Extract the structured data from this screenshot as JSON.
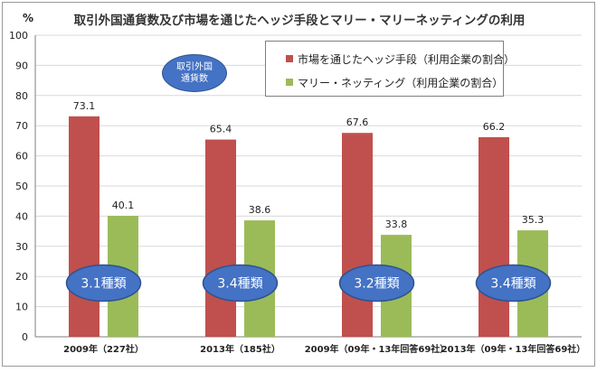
{
  "chart_data": {
    "type": "bar",
    "title": "取引外国通貨数及び市場を通じたヘッジ手段とマリー・マリーネッティングの利用",
    "ylabel_unit": "%",
    "ylim": [
      0,
      100
    ],
    "yticks": [
      0,
      10,
      20,
      30,
      40,
      50,
      60,
      70,
      80,
      90,
      100
    ],
    "grid": true,
    "legend_position": "top-right",
    "categories": [
      "2009年（227社）",
      "2013年（185社）",
      "2009年（09年・13年回答69社）",
      "2013年（09年・13年回答69社）"
    ],
    "series": [
      {
        "name": "市場を通じたヘッジ手段（利用企業の割合）",
        "color": "#c0504d",
        "values": [
          73.1,
          65.4,
          67.6,
          66.2
        ]
      },
      {
        "name": "マリー・ネッティング（利用企業の割合）",
        "color": "#9bbb59",
        "values": [
          40.1,
          38.6,
          33.8,
          35.3
        ]
      }
    ],
    "currency_counts": [
      "3.1種類",
      "3.4種類",
      "3.2種類",
      "3.4種類"
    ],
    "currency_label": "取引外国\n通貨数"
  },
  "colors": {
    "ellipse_fill": "#4472c4",
    "ellipse_stroke": "#2f528f",
    "grid": "#d9d9d9",
    "axis": "#7f7f7f"
  }
}
